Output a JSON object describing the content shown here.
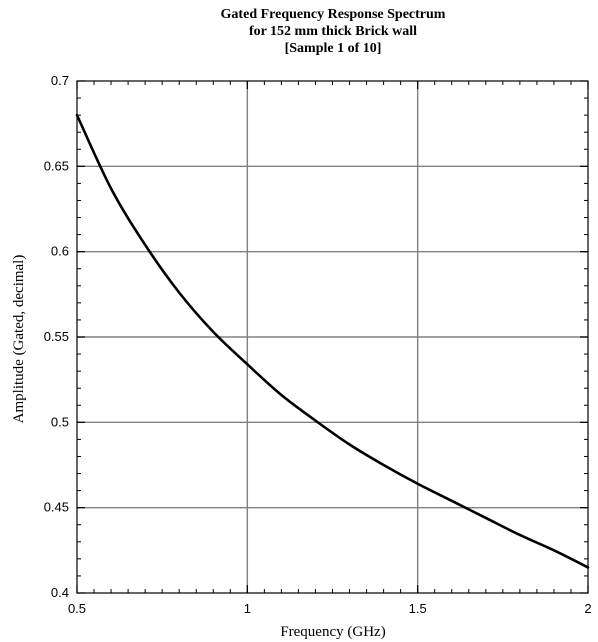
{
  "chart_data": {
    "type": "line",
    "title_lines": [
      "Gated Frequency Response Spectrum",
      "for 152 mm thick Brick wall",
      "[Sample 1 of 10]"
    ],
    "xlabel": "Frequency (GHz)",
    "ylabel": "Amplitude (Gated, decimal)",
    "xlim": [
      0.5,
      2
    ],
    "ylim": [
      0.4,
      0.7
    ],
    "xticks": [
      0.5,
      1,
      1.5,
      2
    ],
    "xtick_labels": [
      "0.5",
      "1",
      "1.5",
      "2"
    ],
    "yticks": [
      0.4,
      0.45,
      0.5,
      0.55,
      0.6,
      0.65,
      0.7
    ],
    "ytick_labels": [
      "0.4",
      "0.45",
      "0.5",
      "0.55",
      "0.6",
      "0.65",
      "0.7"
    ],
    "x_minor_step": 0.05,
    "y_minor_step": 0.01,
    "grid": true,
    "line_color": "#000000",
    "grid_color": "#808080",
    "series": [
      {
        "x": [
          0.5,
          0.6,
          0.7,
          0.8,
          0.9,
          1.0,
          1.1,
          1.2,
          1.3,
          1.4,
          1.5,
          1.6,
          1.7,
          1.8,
          1.9,
          2.0
        ],
        "y": [
          0.68,
          0.637,
          0.604,
          0.576,
          0.553,
          0.534,
          0.516,
          0.501,
          0.487,
          0.475,
          0.464,
          0.454,
          0.444,
          0.434,
          0.425,
          0.415
        ]
      }
    ]
  }
}
